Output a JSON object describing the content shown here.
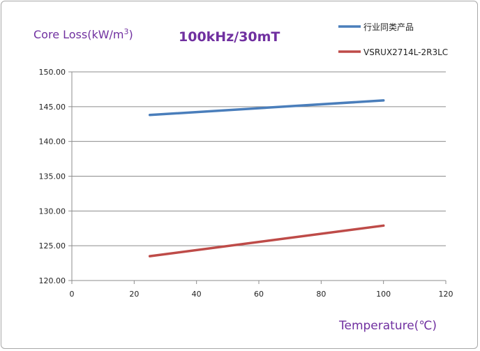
{
  "chart_data": {
    "type": "line",
    "title": "100kHz/30mT",
    "ylabel": "Core Loss(kW/m",
    "ylabel_sup": "3",
    "ylabel_close": ")",
    "xlabel": "Temperature(℃)",
    "xlim": [
      0,
      120
    ],
    "ylim": [
      120,
      150
    ],
    "x_ticks": [
      0,
      20,
      40,
      60,
      80,
      100,
      120
    ],
    "x_tick_labels": [
      "0",
      "20",
      "40",
      "60",
      "80",
      "100",
      "120"
    ],
    "y_ticks": [
      120,
      125,
      130,
      135,
      140,
      145,
      150
    ],
    "y_tick_labels": [
      "120.00",
      "125.00",
      "130.00",
      "135.00",
      "140.00",
      "145.00",
      "150.00"
    ],
    "grid": "horizontal",
    "legend_position": "top-right",
    "series": [
      {
        "name": "行业同类产品",
        "color": "#4a7ebb",
        "x": [
          25,
          100
        ],
        "y": [
          143.8,
          145.9
        ]
      },
      {
        "name": "VSRUX2714L-2R3LC",
        "color": "#be4b48",
        "x": [
          25,
          100
        ],
        "y": [
          123.5,
          127.9
        ]
      }
    ]
  }
}
